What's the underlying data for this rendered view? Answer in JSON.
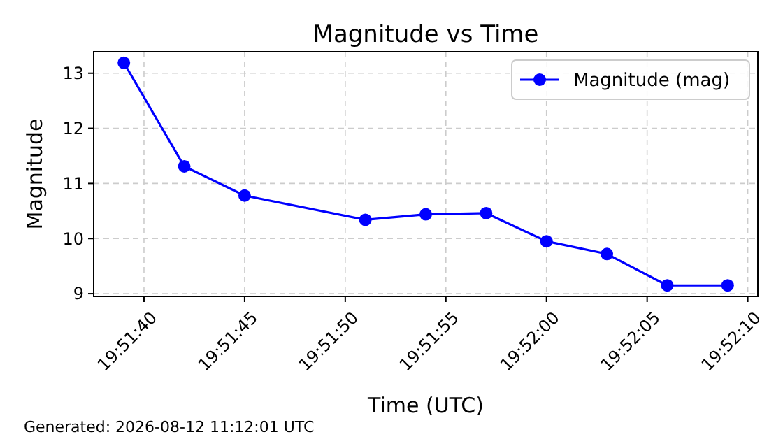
{
  "chart_data": {
    "type": "line",
    "title": "Magnitude vs Time",
    "xlabel": "Time (UTC)",
    "ylabel": "Magnitude",
    "x": [
      "2026-08-12T19:51:39",
      "2026-08-12T19:51:42",
      "2026-08-12T19:51:45",
      "2026-08-12T19:51:51",
      "2026-08-12T19:51:54",
      "2026-08-12T19:51:57",
      "2026-08-12T19:52:00",
      "2026-08-12T19:52:03",
      "2026-08-12T19:52:06",
      "2026-08-12T19:52:09"
    ],
    "series": [
      {
        "name": "Magnitude (mag)",
        "color": "#0000ff",
        "values": [
          13.19,
          11.31,
          10.78,
          10.34,
          10.44,
          10.46,
          9.95,
          9.72,
          9.15,
          9.15
        ]
      }
    ],
    "xlim": [
      "2026-08-12T19:51:37.5",
      "2026-08-12T19:52:10.5"
    ],
    "xticks": [
      {
        "value": "2026-08-12T19:51:40",
        "label": "19:51:40"
      },
      {
        "value": "2026-08-12T19:51:45",
        "label": "19:51:45"
      },
      {
        "value": "2026-08-12T19:51:50",
        "label": "19:51:50"
      },
      {
        "value": "2026-08-12T19:51:55",
        "label": "19:51:55"
      },
      {
        "value": "2026-08-12T19:52:00",
        "label": "19:52:00"
      },
      {
        "value": "2026-08-12T19:52:05",
        "label": "19:52:05"
      },
      {
        "value": "2026-08-12T19:52:10",
        "label": "19:52:10"
      }
    ],
    "ylim": [
      8.95,
      13.39
    ],
    "yticks": [
      9,
      10,
      11,
      12,
      13
    ],
    "grid": true,
    "legend": "top right",
    "marker": "circle",
    "line_style": "solid",
    "annotations": [
      "Generated: 2026-08-12 11:12:01 UTC"
    ]
  }
}
